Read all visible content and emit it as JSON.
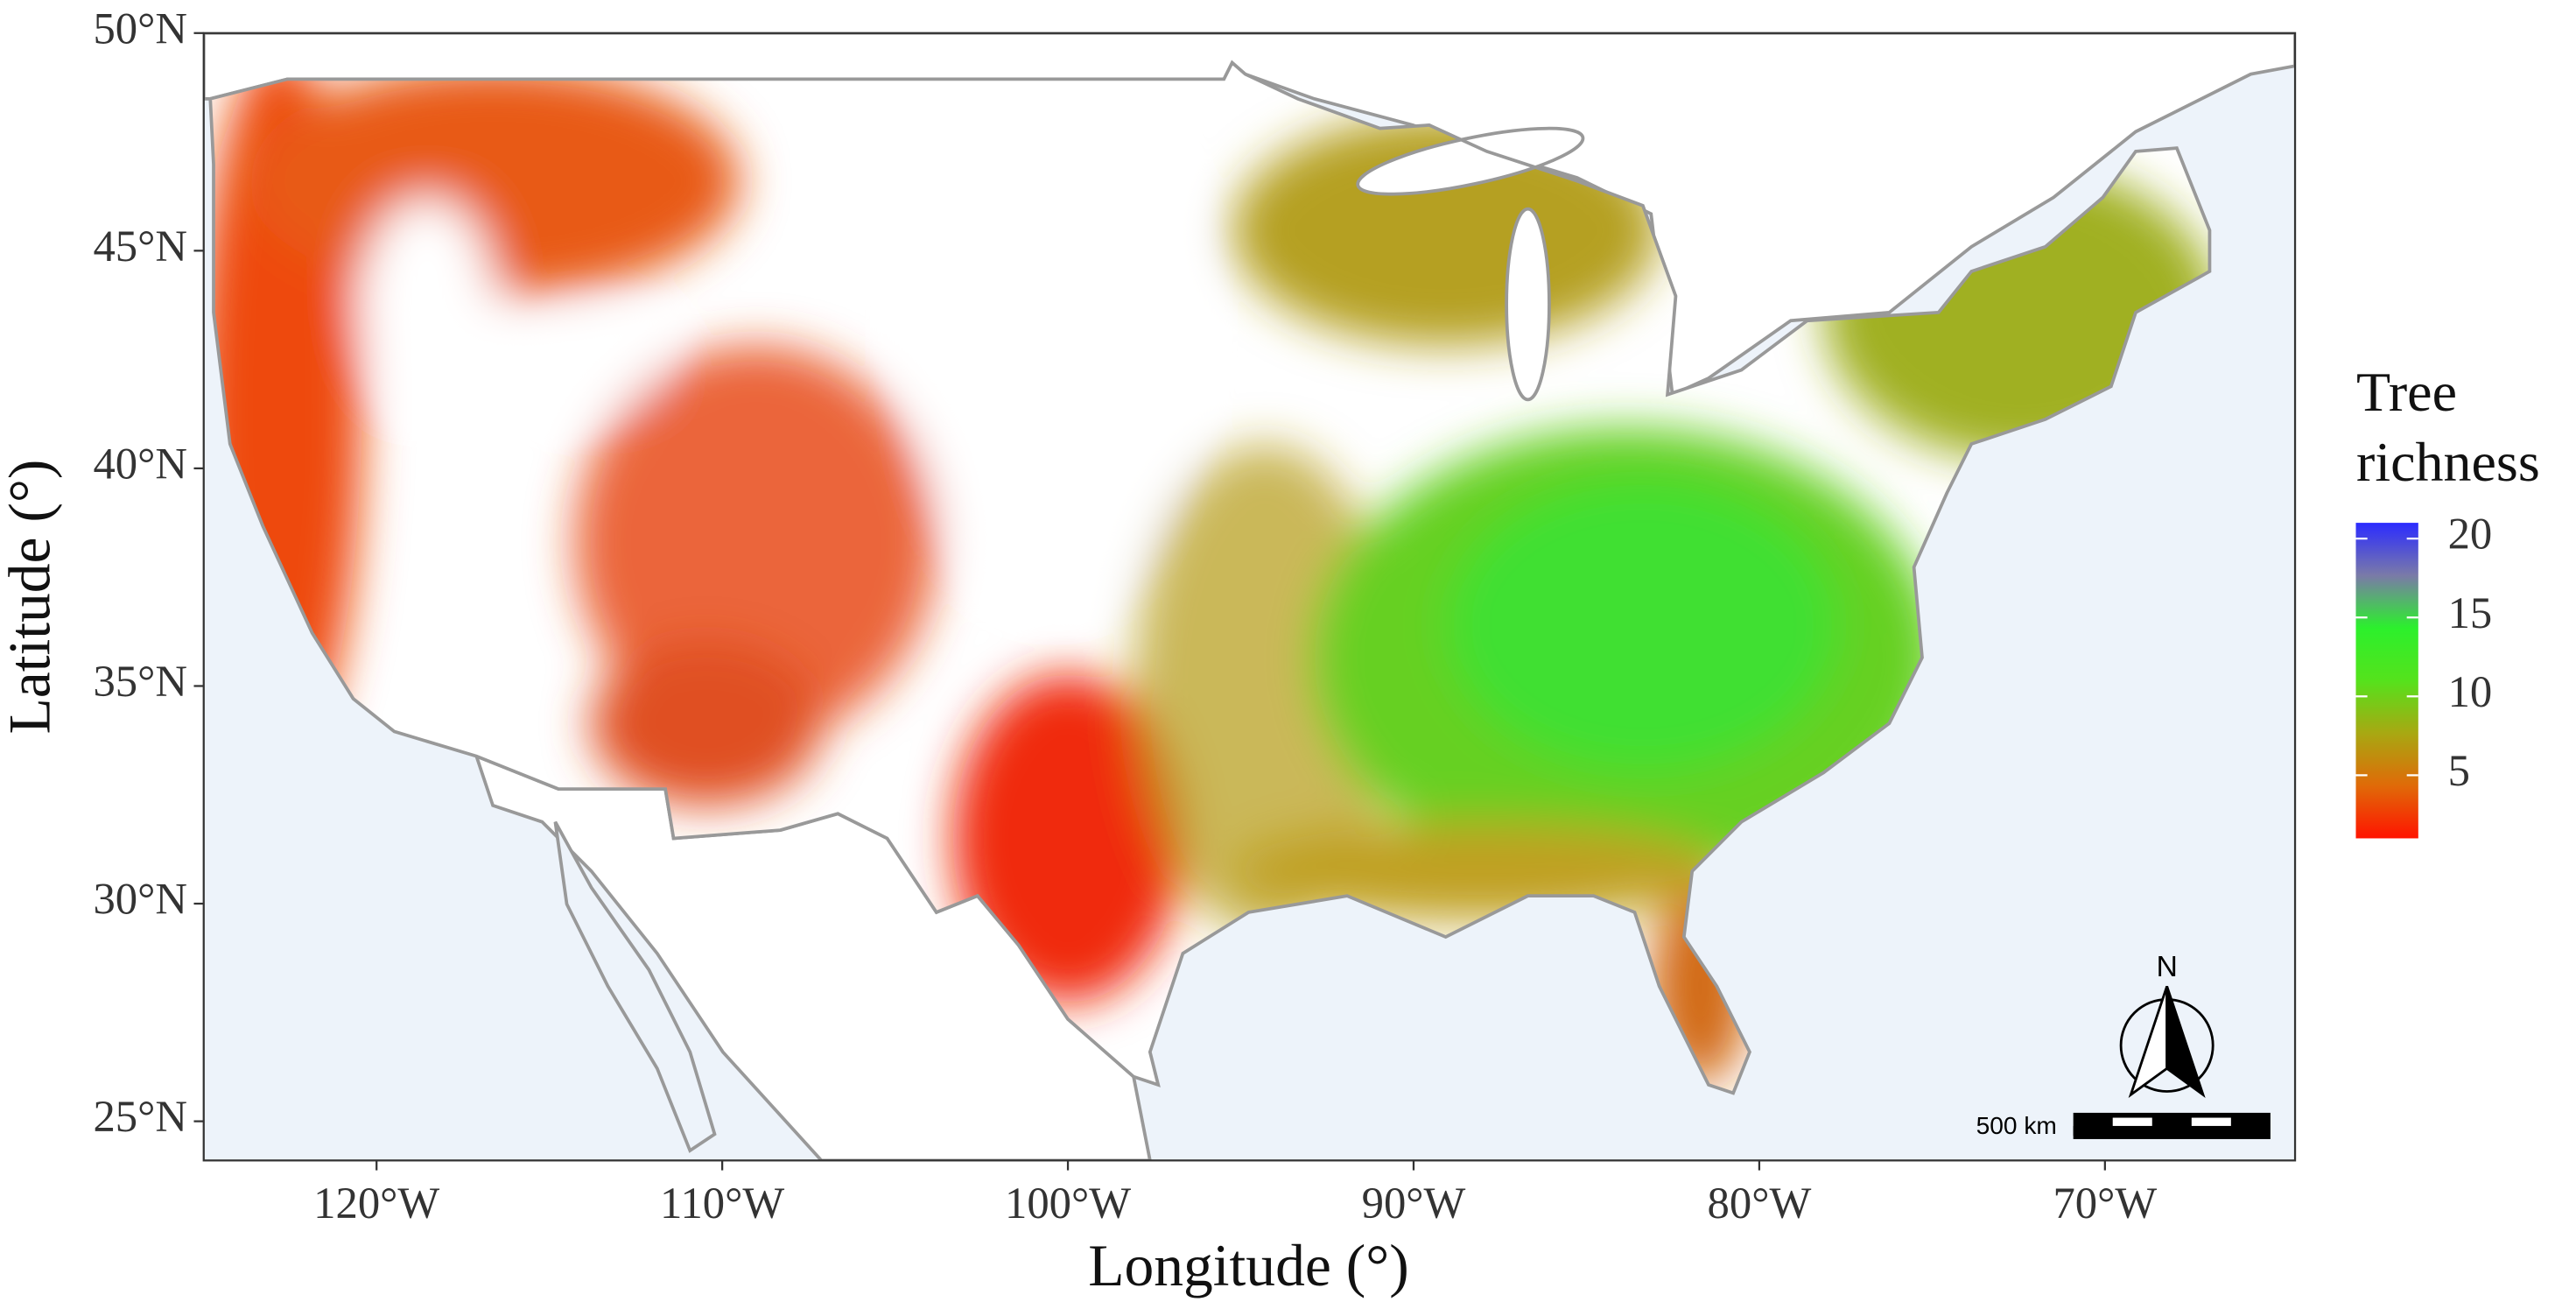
{
  "chart_data": {
    "type": "map",
    "xlabel": "Longitude (°)",
    "ylabel": "Latitude (°)",
    "xlim": [
      -125,
      -64.5
    ],
    "ylim": [
      24.1,
      50
    ],
    "xticks": [
      {
        "value": -120,
        "label": "120°W"
      },
      {
        "value": -110,
        "label": "110°W"
      },
      {
        "value": -100,
        "label": "100°W"
      },
      {
        "value": -90,
        "label": "90°W"
      },
      {
        "value": -80,
        "label": "80°W"
      },
      {
        "value": -70,
        "label": "70°W"
      }
    ],
    "yticks": [
      {
        "value": 25,
        "label": "25°N"
      },
      {
        "value": 30,
        "label": "30°N"
      },
      {
        "value": 35,
        "label": "35°N"
      },
      {
        "value": 40,
        "label": "40°N"
      },
      {
        "value": 45,
        "label": "45°N"
      },
      {
        "value": 50,
        "label": "50°N"
      }
    ],
    "colorbar": {
      "title": "Tree richness",
      "lim": [
        1,
        21
      ],
      "ticks": [
        5,
        10,
        15,
        20
      ],
      "colors": [
        "#ff1400",
        "#e06a08",
        "#a8a812",
        "#55e21c",
        "#2cf02c",
        "#7a7aa8",
        "#2b2bff"
      ]
    },
    "north_arrow": "N",
    "scale_bar": "500 km"
  }
}
